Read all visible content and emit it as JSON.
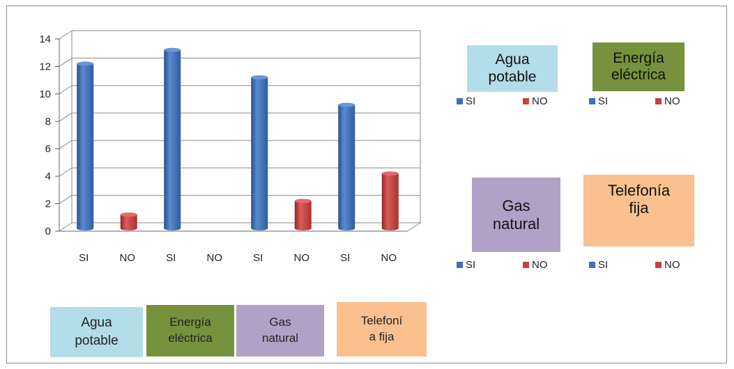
{
  "chart_data": {
    "type": "bar",
    "categories": [
      "SI",
      "NO",
      "SI",
      "NO",
      "SI",
      "NO",
      "SI",
      "NO"
    ],
    "values": [
      12,
      1,
      13,
      0,
      11,
      2,
      9,
      4
    ],
    "bar_colors": [
      "#3f6fb8",
      "#c8413f",
      "#3f6fb8",
      "#c8413f",
      "#3f6fb8",
      "#c8413f",
      "#3f6fb8",
      "#c8413f"
    ],
    "ylim": [
      0,
      14
    ],
    "yticks": [
      "0",
      "2",
      "4",
      "6",
      "8",
      "10",
      "12",
      "14"
    ],
    "grid": true,
    "style": "3d-cylinder"
  },
  "legends": [
    {
      "title_lines": [
        "Agua",
        "potable"
      ],
      "color": "#b3dde8",
      "si": "SI",
      "no": "NO"
    },
    {
      "title_lines": [
        "Energía",
        "eléctrica"
      ],
      "color": "#76923c",
      "si": "SI",
      "no": "NO"
    },
    {
      "title_lines": [
        "Gas",
        "natural"
      ],
      "color": "#b2a1c7",
      "si": "SI",
      "no": "NO"
    },
    {
      "title_lines": [
        "Telefonía",
        "fija"
      ],
      "color": "#fac08f",
      "si": "SI",
      "no": "NO"
    }
  ],
  "series_colors": {
    "si": "#3f6fb8",
    "no": "#c8413f"
  },
  "category_labels": [
    {
      "lines": [
        "Agua",
        "potable"
      ],
      "color": "#b3dde8"
    },
    {
      "lines": [
        "Energía",
        "eléctrica"
      ],
      "color": "#76923c"
    },
    {
      "lines": [
        "Gas",
        "natural"
      ],
      "color": "#b2a1c7"
    },
    {
      "lines": [
        "Telefoní",
        "a fija"
      ],
      "color": "#fac08f"
    }
  ]
}
